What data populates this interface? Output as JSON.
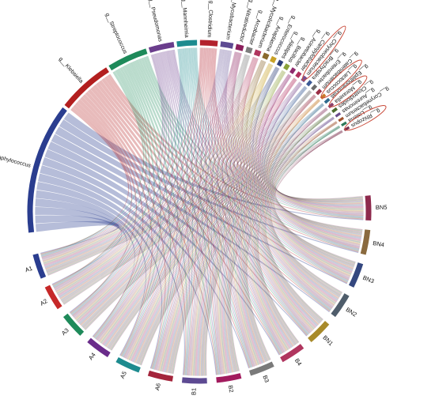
{
  "chart_data": {
    "type": "chord",
    "taxa": [
      {
        "label": "g__Staphylococcus",
        "color": "#2a3d8f",
        "weight": 26
      },
      {
        "label": "g__Klebsiella",
        "color": "#b31f1f",
        "weight": 11
      },
      {
        "label": "g__Streptococcus",
        "color": "#1e8a5a",
        "weight": 8
      },
      {
        "label": "g__Pseudomonas",
        "color": "#6a3d8c",
        "weight": 5
      },
      {
        "label": "g__Mannheimia",
        "color": "#1d8b8f",
        "weight": 4
      },
      {
        "label": "g__Clostridium",
        "color": "#b3222d",
        "weight": 3.5
      },
      {
        "label": "g__Mycobacterium",
        "color": "#5d4a92",
        "weight": 2.5
      },
      {
        "label": "g__Nitratireductor",
        "color": "#8b1f5c",
        "weight": 1.5
      },
      {
        "label": "g__Arcobacter",
        "color": "#7d7d7d",
        "weight": 1.2
      },
      {
        "label": "g__Mycolicibacterium",
        "color": "#b0365f",
        "weight": 1.2
      },
      {
        "label": "g__Anaplasma",
        "color": "#8a6a2e",
        "weight": 1.1
      },
      {
        "label": "g__Enterococcus",
        "color": "#c9a227",
        "weight": 1
      },
      {
        "label": "g__Alistipes",
        "color": "#2e3f7a",
        "weight": 0.9
      },
      {
        "label": "g__Bacillus",
        "color": "#8aa23a",
        "weight": 0.9
      },
      {
        "label": "g__Acinetobacter",
        "color": "#8e2a6d",
        "weight": 0.8
      },
      {
        "label": "g__Campylobacter",
        "color": "#b0305f",
        "weight": 0.8
      },
      {
        "label": "g__Chryseobacterium",
        "color": "#7a4f90",
        "weight": 0.8
      },
      {
        "label": "g__Brachyspira",
        "color": "#3d5a96",
        "weight": 0.7
      },
      {
        "label": "g__Enterobacter",
        "color": "#6c6c6c",
        "weight": 0.7
      },
      {
        "label": "g__Catenibacterium",
        "color": "#9b2e45",
        "weight": 0.7
      },
      {
        "label": "g__Lactococcus",
        "color": "#c97a2a",
        "weight": 0.6
      },
      {
        "label": "g__Epilithonimonas",
        "color": "#2f6a8c",
        "weight": 0.6
      },
      {
        "label": "g__Moraxella",
        "color": "#8c3f6a",
        "weight": 0.6
      },
      {
        "label": "g__Clostridioides",
        "color": "#4d6a2e",
        "weight": 0.6
      },
      {
        "label": "g__Aureimonas",
        "color": "#6a4a8c",
        "weight": 0.5
      },
      {
        "label": "g__Corynebacterium",
        "color": "#a0522d",
        "weight": 0.5
      },
      {
        "label": "g__Listeria",
        "color": "#2e7a5a",
        "weight": 0.5
      },
      {
        "label": "g__Rhizopus",
        "color": "#7a2e4d",
        "weight": 0.5
      }
    ],
    "samples": [
      {
        "label": "A1",
        "color": "#2a3d8f"
      },
      {
        "label": "A2",
        "color": "#c62828"
      },
      {
        "label": "A3",
        "color": "#1e8a5a"
      },
      {
        "label": "A4",
        "color": "#6a2c8a"
      },
      {
        "label": "A5",
        "color": "#1d8b8f"
      },
      {
        "label": "A6",
        "color": "#a4243b"
      },
      {
        "label": "B1",
        "color": "#5d4a92"
      },
      {
        "label": "B2",
        "color": "#a21b5e"
      },
      {
        "label": "B3",
        "color": "#7a7a7a"
      },
      {
        "label": "B4",
        "color": "#b0365f"
      },
      {
        "label": "BN1",
        "color": "#a88a2a"
      },
      {
        "label": "BN2",
        "color": "#4f5d6b"
      },
      {
        "label": "BN3",
        "color": "#34477f"
      },
      {
        "label": "BN4",
        "color": "#8a6a3e"
      },
      {
        "label": "BN5",
        "color": "#8e2a4d"
      }
    ],
    "highlighted": [
      "g__Chryseobacterium",
      "g__Lactococcus",
      "g__Moraxella",
      "g__Rhizopus"
    ],
    "highlight_color": "#c94a3a"
  }
}
